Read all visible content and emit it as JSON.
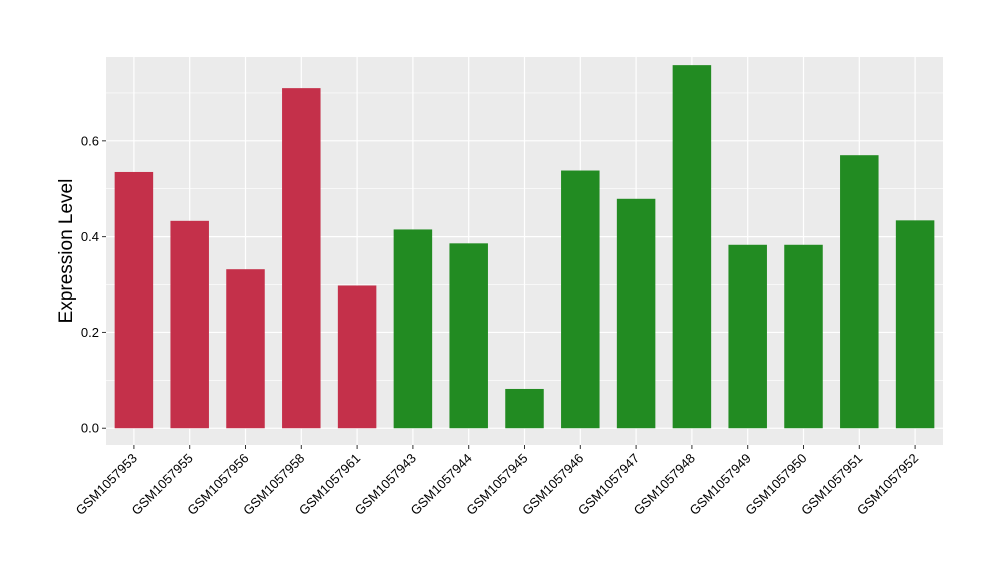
{
  "chart_data": {
    "type": "bar",
    "title": "",
    "xlabel": "",
    "ylabel": "Expression Level",
    "ylim": [
      -0.035,
      0.775
    ],
    "yticks": [
      0.0,
      0.2,
      0.4,
      0.6
    ],
    "ytick_labels": [
      "0.0",
      "0.2",
      "0.4",
      "0.6"
    ],
    "grid": true,
    "legend": "none",
    "background_color": "#EBEBEB",
    "categories": [
      "GSM1057953",
      "GSM1057955",
      "GSM1057956",
      "GSM1057958",
      "GSM1057961",
      "GSM1057943",
      "GSM1057944",
      "GSM1057945",
      "GSM1057946",
      "GSM1057947",
      "GSM1057948",
      "GSM1057949",
      "GSM1057950",
      "GSM1057951",
      "GSM1057952"
    ],
    "values": [
      0.535,
      0.433,
      0.332,
      0.71,
      0.298,
      0.415,
      0.386,
      0.082,
      0.538,
      0.479,
      0.758,
      0.383,
      0.383,
      0.57,
      0.434
    ],
    "bar_colors": [
      "#C4304A",
      "#C4304A",
      "#C4304A",
      "#C4304A",
      "#C4304A",
      "#228B22",
      "#228B22",
      "#228B22",
      "#228B22",
      "#228B22",
      "#228B22",
      "#228B22",
      "#228B22",
      "#228B22",
      "#228B22"
    ]
  }
}
